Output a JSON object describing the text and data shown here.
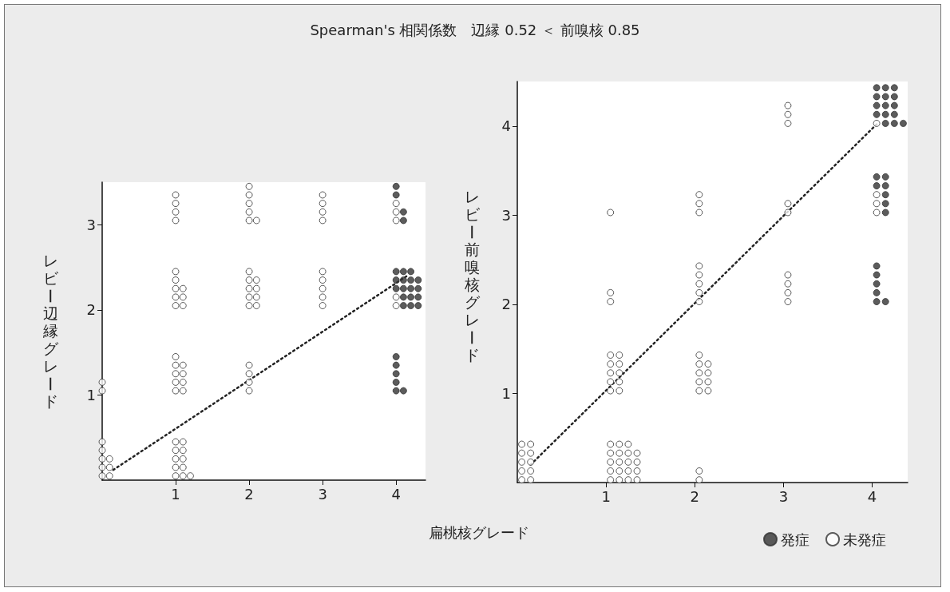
{
  "chart_data": [
    {
      "type": "scatter",
      "title": "Spearman's 相関係数　辺縁 0.52 ＜ 前嗅核 0.85",
      "xlabel": "扁桃核グレード",
      "ylabel": "レビー辺縁グレード",
      "xlim": [
        0,
        4.4
      ],
      "ylim": [
        0,
        3.5
      ],
      "xticks": [
        1,
        2,
        3,
        4
      ],
      "yticks": [
        1,
        2,
        3
      ],
      "series": [
        {
          "type": "scatter",
          "marker": "circle",
          "color": "#ffffff",
          "x": [
            0,
            0,
            0,
            0,
            0,
            0.1,
            0.1,
            0.1,
            0,
            0,
            1,
            1,
            1,
            1,
            1,
            1.1,
            1.1,
            1.1,
            1.1,
            1.1,
            1.2,
            1,
            1,
            1,
            1,
            1,
            1.1,
            1.1,
            1.1,
            1.1,
            1,
            1,
            1,
            1,
            1,
            1.1,
            1.1,
            1.1,
            1,
            1,
            1,
            1,
            2,
            2,
            2,
            2,
            2,
            2,
            2,
            2,
            2,
            2.1,
            2.1,
            2.1,
            2.1,
            2,
            2,
            2,
            2,
            2,
            2.1,
            3,
            3,
            3,
            3,
            3,
            3,
            3,
            3,
            3,
            4,
            4,
            4,
            4,
            4
          ],
          "values": [
            0.05,
            0.15,
            0.25,
            0.35,
            0.45,
            0.05,
            0.15,
            0.25,
            1.05,
            1.15,
            0.05,
            0.15,
            0.25,
            0.35,
            0.45,
            0.05,
            0.15,
            0.25,
            0.35,
            0.45,
            0.05,
            1.05,
            1.15,
            1.25,
            1.35,
            1.45,
            1.05,
            1.15,
            1.25,
            1.35,
            2.05,
            2.15,
            2.25,
            2.35,
            2.45,
            2.05,
            2.15,
            2.25,
            3.05,
            3.15,
            3.25,
            3.35,
            1.05,
            1.15,
            1.25,
            1.35,
            2.05,
            2.15,
            2.25,
            2.35,
            2.45,
            2.05,
            2.15,
            2.25,
            2.35,
            3.05,
            3.15,
            3.25,
            3.35,
            3.45,
            3.05,
            2.05,
            2.15,
            2.25,
            2.35,
            2.45,
            3.05,
            3.15,
            3.25,
            3.35,
            2.05,
            2.15,
            3.05,
            3.15,
            3.25
          ]
        },
        {
          "type": "scatter",
          "marker": "circle",
          "color": "#333333",
          "x": [
            4,
            4,
            4,
            4,
            4,
            4.1,
            4,
            4,
            4,
            4.1,
            4.1,
            4.1,
            4.1,
            4.1,
            4.2,
            4.2,
            4.2,
            4.2,
            4.2,
            4.3,
            4.3,
            4.3,
            4.3,
            4,
            4,
            4.1,
            4.1
          ],
          "values": [
            1.05,
            1.15,
            1.25,
            1.35,
            1.45,
            1.05,
            2.25,
            2.35,
            2.45,
            2.05,
            2.15,
            2.25,
            2.35,
            2.45,
            2.05,
            2.15,
            2.25,
            2.35,
            2.45,
            2.05,
            2.15,
            2.25,
            2.35,
            3.35,
            3.45,
            3.05,
            3.15
          ]
        },
        {
          "type": "line",
          "marker": "none",
          "line_style": "dotted",
          "color": "#222222",
          "x": [
            0.15,
            4.15
          ],
          "values": [
            0.12,
            2.4
          ]
        }
      ]
    },
    {
      "type": "scatter",
      "ylabel": "レビー前嗅核グレード",
      "legend": "bottom right",
      "xlim": [
        0,
        4.4
      ],
      "ylim": [
        0,
        4.5
      ],
      "xticks": [
        1,
        2,
        3,
        4
      ],
      "yticks": [
        1,
        2,
        3,
        4
      ],
      "series": [
        {
          "type": "scatter",
          "name": "発症",
          "marker": "circle",
          "color": "#333333",
          "x": [
            4.05,
            4.05,
            4.05,
            4.05,
            4.05,
            4.15,
            4.05,
            4.05,
            4.15,
            4.15,
            4.15,
            4.15,
            4.15,
            4.05,
            4.05,
            4.05,
            4.05,
            4.15,
            4.15,
            4.15,
            4.15,
            4.15,
            4.25,
            4.25,
            4.25,
            4.25,
            4.25,
            4.35
          ],
          "values": [
            2.03,
            2.13,
            2.23,
            2.33,
            2.43,
            2.03,
            3.33,
            3.43,
            3.03,
            3.13,
            3.23,
            3.33,
            3.43,
            4.13,
            4.23,
            4.33,
            4.43,
            4.03,
            4.13,
            4.23,
            4.33,
            4.43,
            4.03,
            4.13,
            4.23,
            4.33,
            4.43,
            4.03
          ]
        },
        {
          "type": "scatter",
          "name": "未発症",
          "marker": "circle",
          "color": "#ffffff",
          "x": [
            0.05,
            0.05,
            0.05,
            0.05,
            0.05,
            0.15,
            0.15,
            0.15,
            0.15,
            0.15,
            1.05,
            1.05,
            1.05,
            1.05,
            1.05,
            1.15,
            1.15,
            1.15,
            1.15,
            1.15,
            1.25,
            1.25,
            1.25,
            1.25,
            1.25,
            1.35,
            1.35,
            1.35,
            1.35,
            1.05,
            1.05,
            1.05,
            1.05,
            1.05,
            1.15,
            1.15,
            1.15,
            1.15,
            1.15,
            1.05,
            1.05,
            1.05,
            2.05,
            2.05,
            2.05,
            2.05,
            2.05,
            2.05,
            2.05,
            2.15,
            2.15,
            2.15,
            2.15,
            2.05,
            2.05,
            2.05,
            2.05,
            2.05,
            2.05,
            2.05,
            2.05,
            3.05,
            3.05,
            3.05,
            3.05,
            3.05,
            3.05,
            3.05,
            3.05,
            3.05,
            4.05,
            4.05,
            4.05,
            4.05
          ],
          "values": [
            0.03,
            0.13,
            0.23,
            0.33,
            0.43,
            0.03,
            0.13,
            0.23,
            0.33,
            0.43,
            0.03,
            0.13,
            0.23,
            0.33,
            0.43,
            0.03,
            0.13,
            0.23,
            0.33,
            0.43,
            0.03,
            0.13,
            0.23,
            0.33,
            0.43,
            0.03,
            0.13,
            0.23,
            0.33,
            1.03,
            1.13,
            1.23,
            1.33,
            1.43,
            1.03,
            1.13,
            1.23,
            1.33,
            1.43,
            2.03,
            2.13,
            3.03,
            0.03,
            0.13,
            1.03,
            1.13,
            1.23,
            1.33,
            1.43,
            1.03,
            1.13,
            1.23,
            1.33,
            2.03,
            2.13,
            2.23,
            2.33,
            2.43,
            3.03,
            3.13,
            3.23,
            2.03,
            2.13,
            2.23,
            2.33,
            3.03,
            3.13,
            4.03,
            4.13,
            4.23,
            3.03,
            3.13,
            3.23,
            4.03
          ]
        },
        {
          "type": "line",
          "marker": "none",
          "line_style": "dotted",
          "color": "#222222",
          "x": [
            0.15,
            4.05
          ],
          "values": [
            0.2,
            4.02
          ]
        }
      ]
    }
  ]
}
